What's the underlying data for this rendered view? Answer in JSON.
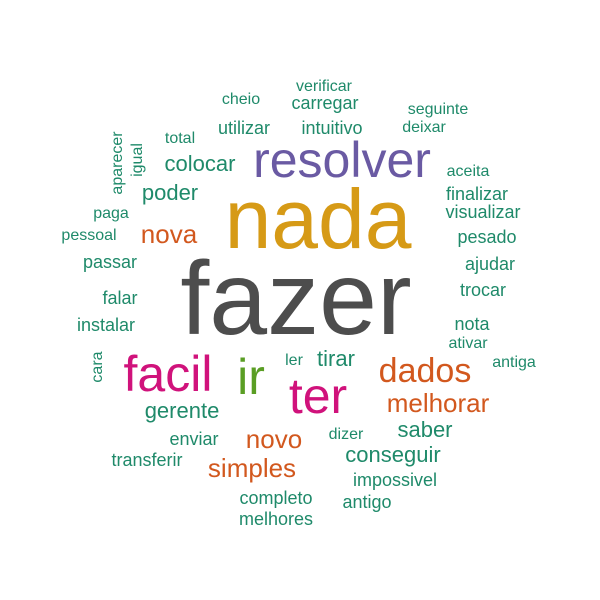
{
  "words": [
    {
      "text": "fazer",
      "color": "#4d4d4d"
    },
    {
      "text": "nada",
      "color": "#d69a16"
    },
    {
      "text": "resolver",
      "color": "#6a5aa3"
    },
    {
      "text": "facil",
      "color": "#d0127b"
    },
    {
      "text": "ter",
      "color": "#d0127b"
    },
    {
      "text": "ir",
      "color": "#5a9e24"
    },
    {
      "text": "dados",
      "color": "#d2581e"
    },
    {
      "text": "melhorar",
      "color": "#d2581e"
    },
    {
      "text": "novo",
      "color": "#d2581e"
    },
    {
      "text": "simples",
      "color": "#d2581e"
    },
    {
      "text": "nova",
      "color": "#d2581e"
    },
    {
      "text": "poder",
      "color": "#1f8a6a"
    },
    {
      "text": "colocar",
      "color": "#1f8a6a"
    },
    {
      "text": "utilizar",
      "color": "#1f8a6a"
    },
    {
      "text": "intuitivo",
      "color": "#1f8a6a"
    },
    {
      "text": "carregar",
      "color": "#1f8a6a"
    },
    {
      "text": "verificar",
      "color": "#1f8a6a"
    },
    {
      "text": "cheio",
      "color": "#1f8a6a"
    },
    {
      "text": "total",
      "color": "#1f8a6a"
    },
    {
      "text": "seguinte",
      "color": "#1f8a6a"
    },
    {
      "text": "deixar",
      "color": "#1f8a6a"
    },
    {
      "text": "aceita",
      "color": "#1f8a6a"
    },
    {
      "text": "finalizar",
      "color": "#1f8a6a"
    },
    {
      "text": "visualizar",
      "color": "#1f8a6a"
    },
    {
      "text": "pesado",
      "color": "#1f8a6a"
    },
    {
      "text": "ajudar",
      "color": "#1f8a6a"
    },
    {
      "text": "trocar",
      "color": "#1f8a6a"
    },
    {
      "text": "nota",
      "color": "#1f8a6a"
    },
    {
      "text": "ativar",
      "color": "#1f8a6a"
    },
    {
      "text": "antiga",
      "color": "#1f8a6a"
    },
    {
      "text": "tirar",
      "color": "#1f8a6a"
    },
    {
      "text": "ler",
      "color": "#1f8a6a"
    },
    {
      "text": "saber",
      "color": "#1f8a6a"
    },
    {
      "text": "dizer",
      "color": "#1f8a6a"
    },
    {
      "text": "conseguir",
      "color": "#1f8a6a"
    },
    {
      "text": "impossivel",
      "color": "#1f8a6a"
    },
    {
      "text": "antigo",
      "color": "#1f8a6a"
    },
    {
      "text": "completo",
      "color": "#1f8a6a"
    },
    {
      "text": "melhores",
      "color": "#1f8a6a"
    },
    {
      "text": "transferir",
      "color": "#1f8a6a"
    },
    {
      "text": "enviar",
      "color": "#1f8a6a"
    },
    {
      "text": "gerente",
      "color": "#1f8a6a"
    },
    {
      "text": "cara",
      "color": "#1f8a6a"
    },
    {
      "text": "instalar",
      "color": "#1f8a6a"
    },
    {
      "text": "falar",
      "color": "#1f8a6a"
    },
    {
      "text": "passar",
      "color": "#1f8a6a"
    },
    {
      "text": "pessoal",
      "color": "#1f8a6a"
    },
    {
      "text": "paga",
      "color": "#1f8a6a"
    },
    {
      "text": "aparecer",
      "color": "#1f8a6a"
    },
    {
      "text": "igual",
      "color": "#1f8a6a"
    }
  ]
}
